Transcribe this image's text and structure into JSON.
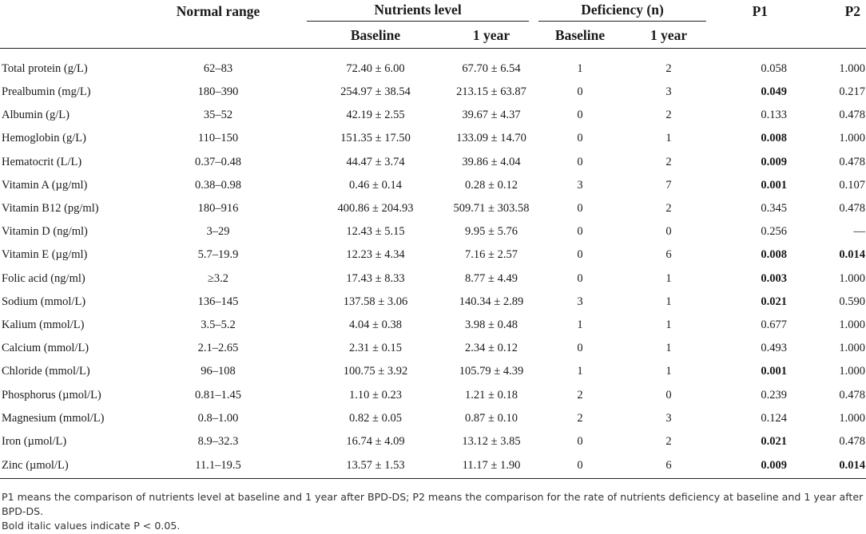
{
  "header": {
    "normal_range": "Normal range",
    "nutrients_level": "Nutrients level",
    "deficiency": "Deficiency (n)",
    "p1": "P1",
    "p2": "P2",
    "baseline": "Baseline",
    "one_year": "1 year"
  },
  "rows": [
    {
      "name": "Total protein (g/L)",
      "range": "62–83",
      "base": "72.40 ± 6.00",
      "year": "67.70 ± 6.54",
      "def_base": "1",
      "def_year": "2",
      "p1": "0.058",
      "p1_bold": false,
      "p2": "1.000",
      "p2_bold": false
    },
    {
      "name": "Prealbumin (mg/L)",
      "range": "180–390",
      "base": "254.97 ± 38.54",
      "year": "213.15 ± 63.87",
      "def_base": "0",
      "def_year": "3",
      "p1": "0.049",
      "p1_bold": true,
      "p2": "0.217",
      "p2_bold": false
    },
    {
      "name": "Albumin (g/L)",
      "range": "35–52",
      "base": "42.19 ± 2.55",
      "year": "39.67 ± 4.37",
      "def_base": "0",
      "def_year": "2",
      "p1": "0.133",
      "p1_bold": false,
      "p2": "0.478",
      "p2_bold": false
    },
    {
      "name": "Hemoglobin (g/L)",
      "range": "110–150",
      "base": "151.35 ± 17.50",
      "year": "133.09 ± 14.70",
      "def_base": "0",
      "def_year": "1",
      "p1": "0.008",
      "p1_bold": true,
      "p2": "1.000",
      "p2_bold": false
    },
    {
      "name": "Hematocrit (L/L)",
      "range": "0.37–0.48",
      "base": "44.47 ± 3.74",
      "year": "39.86 ± 4.04",
      "def_base": "0",
      "def_year": "2",
      "p1": "0.009",
      "p1_bold": true,
      "p2": "0.478",
      "p2_bold": false
    },
    {
      "name": "Vitamin A (µg/ml)",
      "range": "0.38–0.98",
      "base": "0.46 ± 0.14",
      "year": "0.28 ± 0.12",
      "def_base": "3",
      "def_year": "7",
      "p1": "0.001",
      "p1_bold": true,
      "p2": "0.107",
      "p2_bold": false
    },
    {
      "name": "Vitamin B12 (pg/ml)",
      "range": "180–916",
      "base": "400.86 ± 204.93",
      "year": "509.71 ± 303.58",
      "def_base": "0",
      "def_year": "2",
      "p1": "0.345",
      "p1_bold": false,
      "p2": "0.478",
      "p2_bold": false
    },
    {
      "name": "Vitamin D (ng/ml)",
      "range": "3–29",
      "base": "12.43 ± 5.15",
      "year": "9.95 ± 5.76",
      "def_base": "0",
      "def_year": "0",
      "p1": "0.256",
      "p1_bold": false,
      "p2": "—",
      "p2_bold": false
    },
    {
      "name": "Vitamin E (µg/ml)",
      "range": "5.7–19.9",
      "base": "12.23 ± 4.34",
      "year": "7.16 ± 2.57",
      "def_base": "0",
      "def_year": "6",
      "p1": "0.008",
      "p1_bold": true,
      "p2": "0.014",
      "p2_bold": true
    },
    {
      "name": "Folic acid (ng/ml)",
      "range": "≥3.2",
      "base": "17.43 ± 8.33",
      "year": "8.77 ± 4.49",
      "def_base": "0",
      "def_year": "1",
      "p1": "0.003",
      "p1_bold": true,
      "p2": "1.000",
      "p2_bold": false
    },
    {
      "name": "Sodium (mmol/L)",
      "range": "136–145",
      "base": "137.58 ± 3.06",
      "year": "140.34 ± 2.89",
      "def_base": "3",
      "def_year": "1",
      "p1": "0.021",
      "p1_bold": true,
      "p2": "0.590",
      "p2_bold": false
    },
    {
      "name": "Kalium (mmol/L)",
      "range": "3.5–5.2",
      "base": "4.04 ± 0.38",
      "year": "3.98 ± 0.48",
      "def_base": "1",
      "def_year": "1",
      "p1": "0.677",
      "p1_bold": false,
      "p2": "1.000",
      "p2_bold": false
    },
    {
      "name": "Calcium (mmol/L)",
      "range": "2.1–2.65",
      "base": "2.31 ± 0.15",
      "year": "2.34 ± 0.12",
      "def_base": "0",
      "def_year": "1",
      "p1": "0.493",
      "p1_bold": false,
      "p2": "1.000",
      "p2_bold": false
    },
    {
      "name": "Chloride (mmol/L)",
      "range": "96–108",
      "base": "100.75 ± 3.92",
      "year": "105.79 ± 4.39",
      "def_base": "1",
      "def_year": "1",
      "p1": "0.001",
      "p1_bold": true,
      "p2": "1.000",
      "p2_bold": false
    },
    {
      "name": "Phosphorus (µmol/L)",
      "range": "0.81–1.45",
      "base": "1.10 ± 0.23",
      "year": "1.21 ± 0.18",
      "def_base": "2",
      "def_year": "0",
      "p1": "0.239",
      "p1_bold": false,
      "p2": "0.478",
      "p2_bold": false
    },
    {
      "name": "Magnesium (mmol/L)",
      "range": "0.8–1.00",
      "base": "0.82 ± 0.05",
      "year": "0.87 ± 0.10",
      "def_base": "2",
      "def_year": "3",
      "p1": "0.124",
      "p1_bold": false,
      "p2": "1.000",
      "p2_bold": false
    },
    {
      "name": "Iron (µmol/L)",
      "range": "8.9–32.3",
      "base": "16.74 ± 4.09",
      "year": "13.12 ± 3.85",
      "def_base": "0",
      "def_year": "2",
      "p1": "0.021",
      "p1_bold": true,
      "p2": "0.478",
      "p2_bold": false
    },
    {
      "name": "Zinc (µmol/L)",
      "range": "11.1–19.5",
      "base": "13.57 ± 1.53",
      "year": "11.17 ± 1.90",
      "def_base": "0",
      "def_year": "6",
      "p1": "0.009",
      "p1_bold": true,
      "p2": "0.014",
      "p2_bold": true
    }
  ],
  "notes": {
    "note1": "P1 means the comparison of nutrients level at baseline and 1 year after BPD-DS; P2 means the comparison for the rate of nutrients deficiency at baseline and 1 year after BPD-DS.",
    "note2": "Bold italic values indicate P < 0.05."
  }
}
